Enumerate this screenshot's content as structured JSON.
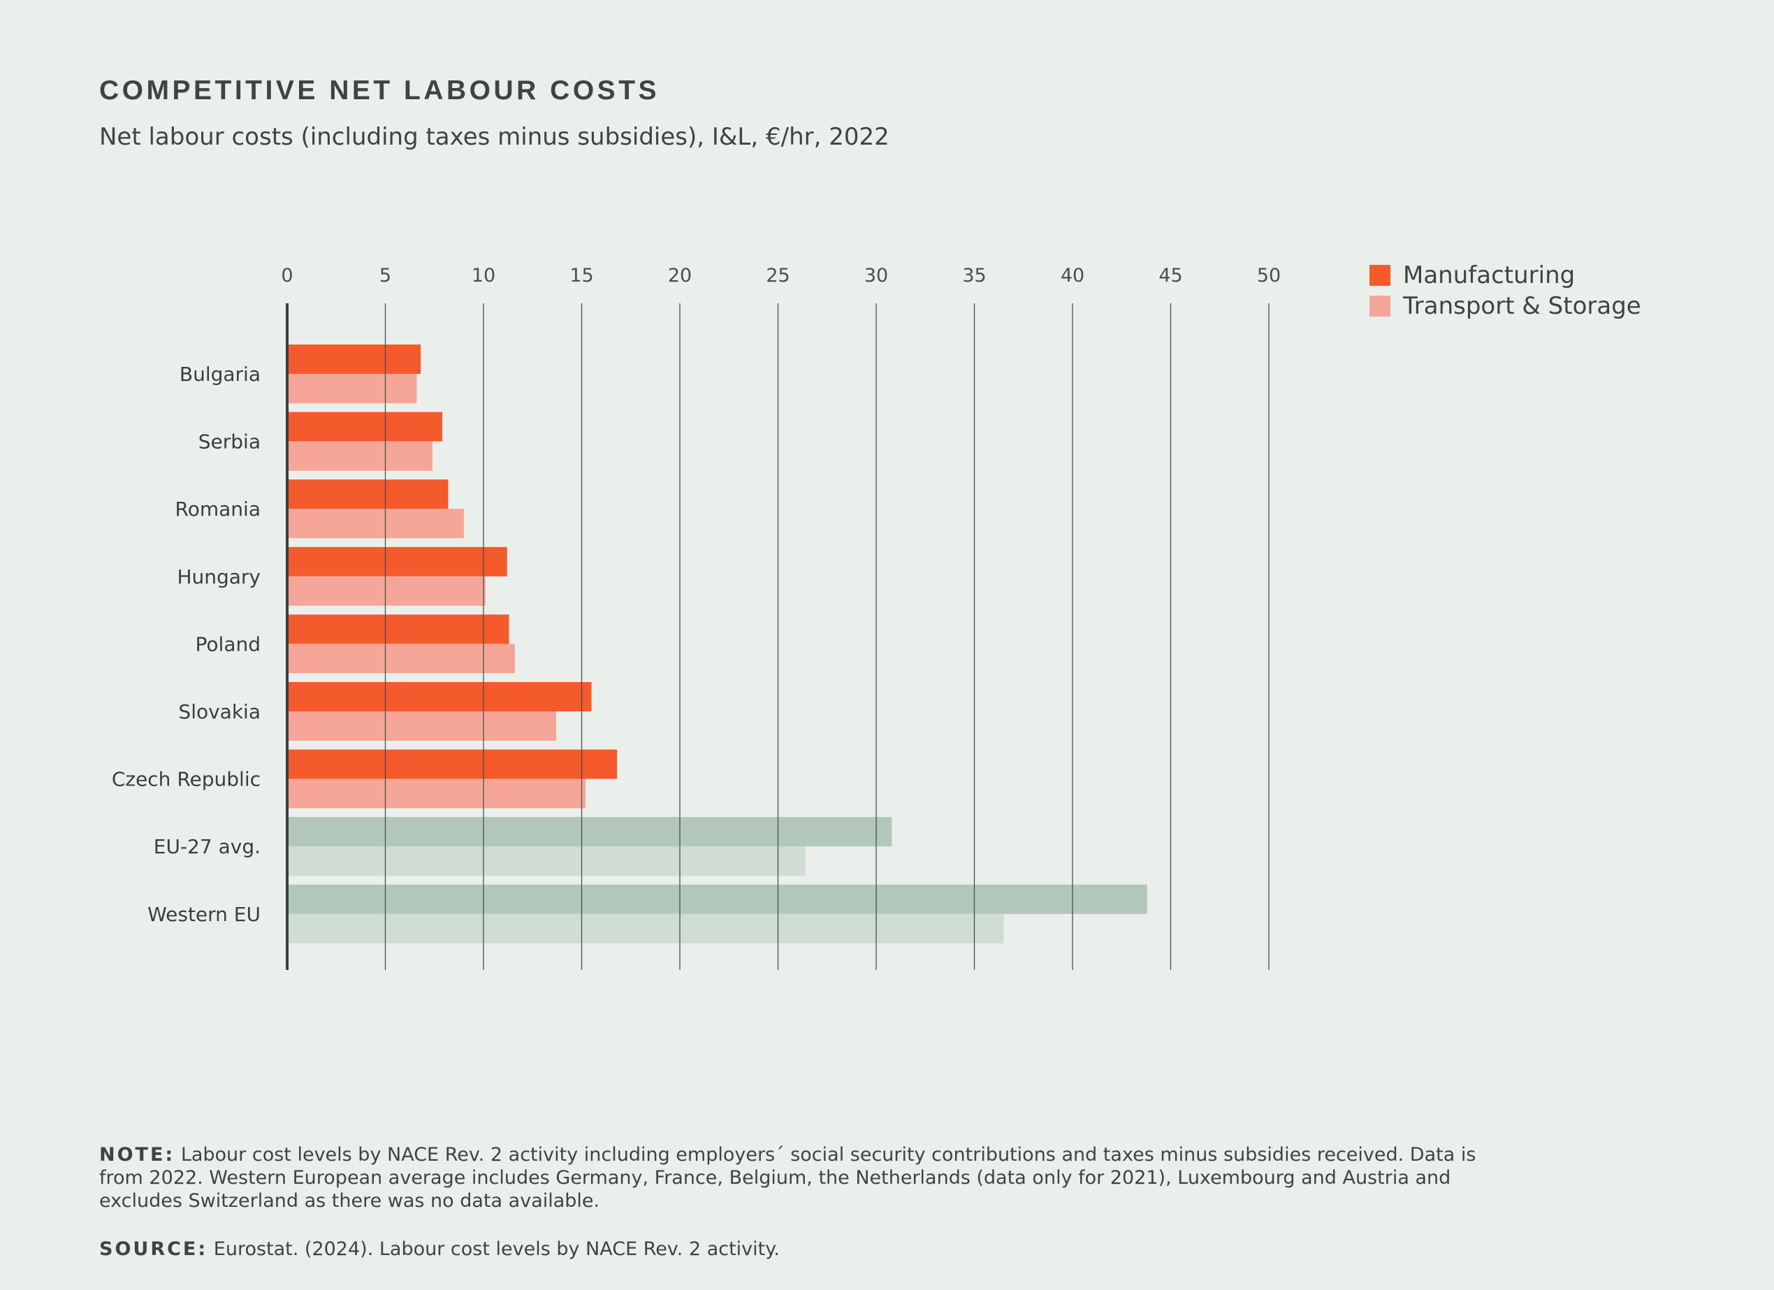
{
  "header": {
    "title": "COMPETITIVE NET LABOUR COSTS",
    "subtitle": "Net labour costs (including taxes minus subsidies), I&L, €/hr, 2022"
  },
  "legend": {
    "items": [
      {
        "label": "Manufacturing",
        "color": "#f45a2c"
      },
      {
        "label": "Transport & Storage",
        "color": "#f6a699"
      }
    ]
  },
  "footer": {
    "note_lead": "NOTE:",
    "note_text": "Labour cost levels by NACE Rev. 2 activity including employers´ social security contributions and taxes minus subsidies received. Data is from 2022. Western European average includes Germany, France, Belgium, the Netherlands (data only for 2021), Luxembourg and Austria and excludes Switzerland as there was no data available.",
    "source_lead": "SOURCE:",
    "source_text": "Eurostat. (2024). Labour cost levels by NACE Rev. 2 activity."
  },
  "chart_data": {
    "type": "bar",
    "orientation": "horizontal",
    "categories": [
      "Bulgaria",
      "Serbia",
      "Romania",
      "Hungary",
      "Poland",
      "Slovakia",
      "Czech Republic",
      "EU-27 avg.",
      "Western EU"
    ],
    "series": [
      {
        "name": "Manufacturing",
        "values": [
          6.8,
          7.9,
          8.2,
          11.2,
          11.3,
          15.5,
          16.8,
          30.8,
          43.8
        ]
      },
      {
        "name": "Transport & Storage",
        "values": [
          6.6,
          7.4,
          9.0,
          10.1,
          11.6,
          13.7,
          15.2,
          26.4,
          36.5
        ]
      }
    ],
    "xlim": [
      0,
      50
    ],
    "xticks": [
      0,
      5,
      10,
      15,
      20,
      25,
      30,
      35,
      40,
      45,
      50
    ],
    "tick_labels": [
      "0",
      "5",
      "10",
      "15",
      "20",
      "25",
      "30",
      "35",
      "40",
      "45",
      "50"
    ],
    "axis_position": "top",
    "grid": true,
    "legend_position": "top-right",
    "colors": {
      "manufacturing": "#f45a2c",
      "transport": "#f6a699",
      "benchmark_manufacturing": "#b2c7ba",
      "benchmark_transport": "#cfddd4",
      "gridline": "#4a4f4d"
    },
    "benchmark_categories": [
      "EU-27 avg.",
      "Western EU"
    ]
  }
}
